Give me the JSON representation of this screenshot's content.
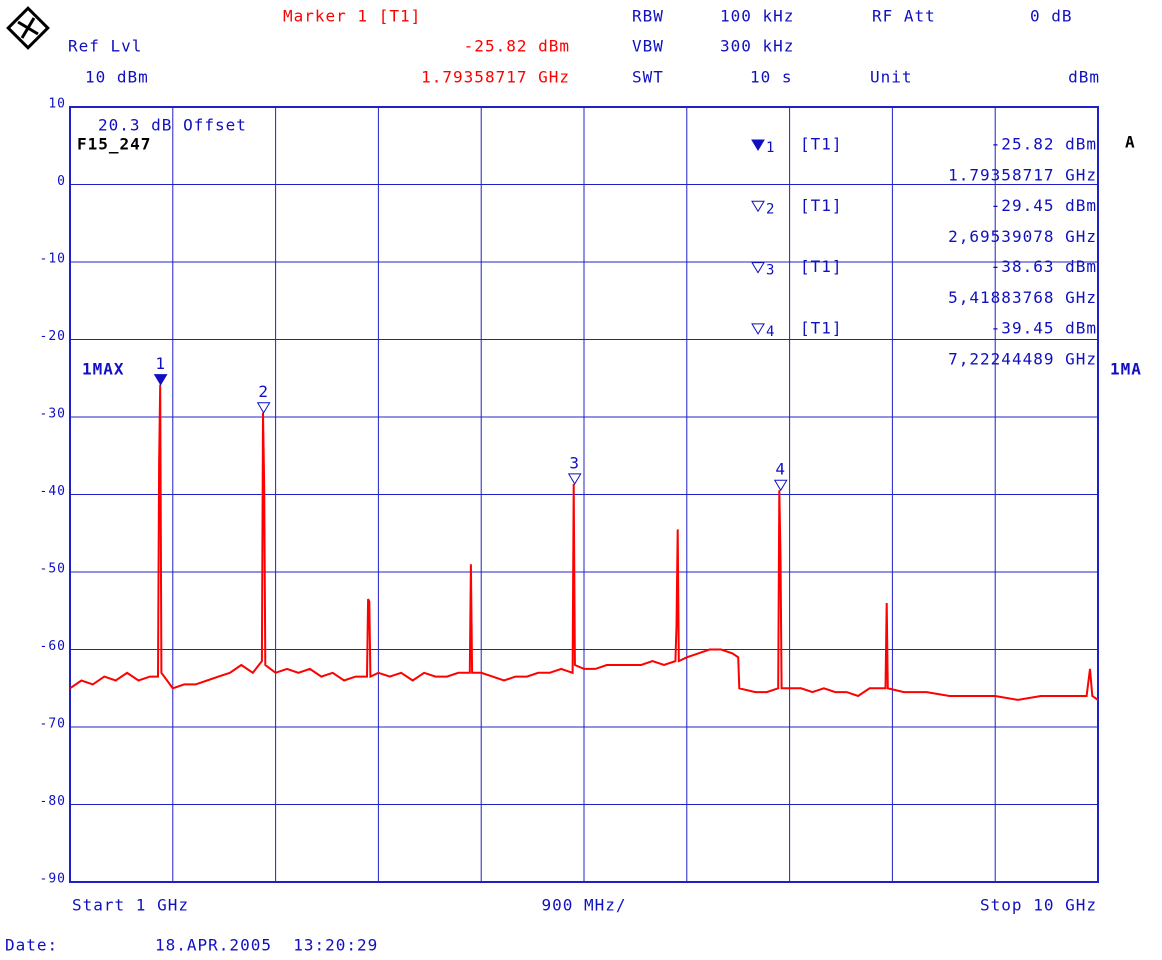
{
  "header": {
    "marker_title": "Marker 1 [T1]",
    "marker_level": "-25.82 dBm",
    "marker_freq": "1.79358717 GHz",
    "ref_lvl_label": "Ref Lvl",
    "ref_lvl_value": "10 dBm",
    "rbw_label": "RBW",
    "rbw_value": "100 kHz",
    "vbw_label": "VBW",
    "vbw_value": "300 kHz",
    "swt_label": "SWT",
    "swt_value": "10 s",
    "rf_att_label": "RF Att",
    "rf_att_value": "0 dB",
    "unit_label": "Unit",
    "unit_value": "dBm"
  },
  "annotations": {
    "offset": "20.3 dB Offset",
    "file": "F15_247",
    "trace_side": "1MA",
    "side_letter": "A"
  },
  "marker_table": [
    {
      "trace": "[T1]",
      "level": "-25.82 dBm",
      "freq": "1.79358717 GHz"
    },
    {
      "trace": "[T1]",
      "level": "-29.45 dBm",
      "freq": "2,69539078 GHz"
    },
    {
      "trace": "[T1]",
      "level": "-38.63 dBm",
      "freq": "5,41883768 GHz"
    },
    {
      "trace": "[T1]",
      "level": "-39.45 dBm",
      "freq": "7,22244489 GHz"
    }
  ],
  "footer": {
    "start": "Start 1 GHz",
    "span": "900 MHz/",
    "stop": "Stop 10 GHz",
    "date_label": "Date:",
    "date": "18.APR.2005  13:20:29"
  },
  "chart_data": {
    "type": "line",
    "xlim": [
      1,
      10
    ],
    "xticks": [
      1,
      1.9,
      2.8,
      3.7,
      4.6,
      5.5,
      6.4,
      7.3,
      8.2,
      9.1,
      10
    ],
    "ylim": [
      -90,
      10
    ],
    "yticks": [
      10,
      0,
      -10,
      -20,
      -30,
      -40,
      -50,
      -60,
      -70,
      -80,
      -90
    ],
    "grid": true,
    "markers": [
      {
        "label": "1",
        "x": 1.79358717,
        "y": -25.82,
        "filled": true
      },
      {
        "label": "2",
        "x": 2.69539078,
        "y": -29.45,
        "filled": false
      },
      {
        "label": "3",
        "x": 5.41883768,
        "y": -38.63,
        "filled": false
      },
      {
        "label": "4",
        "x": 7.22244489,
        "y": -39.45,
        "filled": false
      }
    ],
    "x": [
      1.0,
      1.1,
      1.2,
      1.3,
      1.4,
      1.5,
      1.6,
      1.7,
      1.77,
      1.78,
      1.79,
      1.8,
      1.85,
      1.9,
      2.0,
      2.1,
      2.2,
      2.3,
      2.4,
      2.5,
      2.6,
      2.68,
      2.69,
      2.7,
      2.71,
      2.8,
      2.9,
      3.0,
      3.1,
      3.2,
      3.3,
      3.4,
      3.5,
      3.6,
      3.61,
      3.62,
      3.63,
      3.7,
      3.8,
      3.9,
      4.0,
      4.1,
      4.2,
      4.3,
      4.4,
      4.5,
      4.51,
      4.52,
      4.6,
      4.7,
      4.8,
      4.9,
      5.0,
      5.1,
      5.2,
      5.3,
      5.4,
      5.41,
      5.42,
      5.5,
      5.6,
      5.7,
      5.8,
      5.9,
      6.0,
      6.1,
      6.2,
      6.3,
      6.31,
      6.32,
      6.33,
      6.4,
      6.5,
      6.6,
      6.7,
      6.8,
      6.85,
      6.86,
      7.0,
      7.1,
      7.2,
      7.21,
      7.22,
      7.23,
      7.3,
      7.4,
      7.5,
      7.6,
      7.7,
      7.8,
      7.9,
      8.0,
      8.1,
      8.14,
      8.15,
      8.16,
      8.3,
      8.5,
      8.7,
      8.9,
      9.1,
      9.3,
      9.5,
      9.7,
      9.9,
      9.93,
      9.95,
      10.0
    ],
    "series": [
      {
        "name": "1MAX",
        "color": "#ff0000",
        "values": [
          -65,
          -64,
          -64.5,
          -63.5,
          -64,
          -63,
          -64,
          -63.5,
          -63.5,
          -36,
          -25.82,
          -63,
          -64,
          -65,
          -64.5,
          -64.5,
          -64,
          -63.5,
          -63,
          -62,
          -63,
          -61.5,
          -29.45,
          -39,
          -62,
          -63,
          -62.5,
          -63,
          -62.5,
          -63.5,
          -63,
          -64,
          -63.5,
          -63.5,
          -53.5,
          -53.8,
          -63.5,
          -63,
          -63.5,
          -63,
          -64,
          -63,
          -63.5,
          -63.5,
          -63,
          -63,
          -49,
          -63,
          -63,
          -63.5,
          -64,
          -63.5,
          -63.5,
          -63,
          -63,
          -62.5,
          -63,
          -38.63,
          -62,
          -62.5,
          -62.5,
          -62,
          -62,
          -62,
          -62,
          -61.5,
          -62,
          -61.5,
          -57,
          -44.5,
          -61.5,
          -61,
          -60.5,
          -60,
          -60,
          -60.5,
          -61,
          -65,
          -65.5,
          -65.5,
          -65,
          -39.45,
          -48,
          -65,
          -65,
          -65,
          -65.5,
          -65,
          -65.5,
          -65.5,
          -66,
          -65,
          -65,
          -65,
          -54,
          -65,
          -65.5,
          -65.5,
          -66,
          -66,
          -66,
          -66.5,
          -66,
          -66,
          -66,
          -62.5,
          -66,
          -66.5
        ]
      }
    ]
  }
}
